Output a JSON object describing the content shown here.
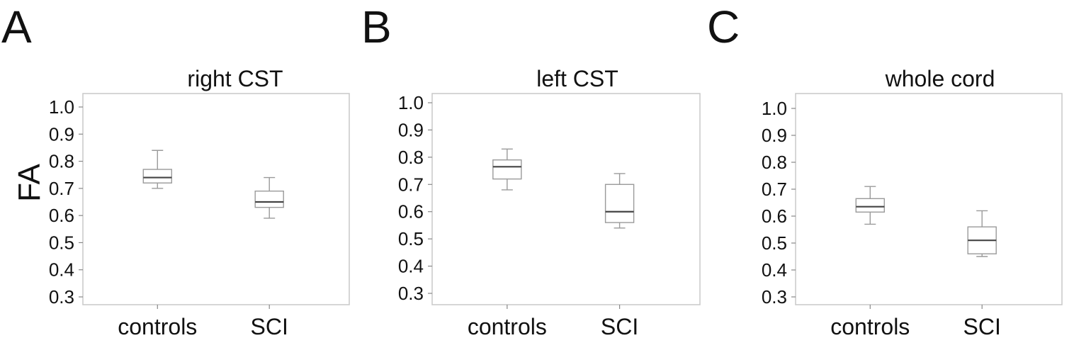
{
  "ylabel": "FA",
  "chart_data": [
    {
      "type": "box",
      "panel": "A",
      "title": "right CST",
      "categories": [
        "controls",
        "SCI"
      ],
      "ylim": [
        0.27,
        1.03
      ],
      "yticks": [
        "1.0",
        "0.9",
        "0.8",
        "0.7",
        "0.6",
        "0.5",
        "0.4",
        "0.3"
      ],
      "ytick_values": [
        1.0,
        0.9,
        0.8,
        0.7,
        0.6,
        0.5,
        0.4,
        0.3
      ],
      "boxes": [
        {
          "min": 0.7,
          "q1": 0.72,
          "median": 0.74,
          "q3": 0.77,
          "max": 0.84
        },
        {
          "min": 0.59,
          "q1": 0.63,
          "median": 0.65,
          "q3": 0.69,
          "max": 0.74
        }
      ]
    },
    {
      "type": "box",
      "panel": "B",
      "title": "left CST",
      "categories": [
        "controls",
        "SCI"
      ],
      "ylim": [
        0.27,
        1.03
      ],
      "yticks": [
        "1.0",
        "0.9",
        "0.8",
        "0.7",
        "0.6",
        "0.5",
        "0.4",
        "0.3"
      ],
      "ytick_values": [
        1.0,
        0.9,
        0.8,
        0.7,
        0.6,
        0.5,
        0.4,
        0.3
      ],
      "boxes": [
        {
          "min": 0.68,
          "q1": 0.72,
          "median": 0.765,
          "q3": 0.79,
          "max": 0.83
        },
        {
          "min": 0.54,
          "q1": 0.56,
          "median": 0.6,
          "q3": 0.7,
          "max": 0.74
        }
      ]
    },
    {
      "type": "box",
      "panel": "C",
      "title": "whole cord",
      "categories": [
        "controls",
        "SCI"
      ],
      "ylim": [
        0.27,
        1.03
      ],
      "yticks": [
        "1.0",
        "0.9",
        "0.8",
        "0.7",
        "0.6",
        "0.5",
        "0.4",
        "0.3"
      ],
      "ytick_values": [
        1.0,
        0.9,
        0.8,
        0.7,
        0.6,
        0.5,
        0.4,
        0.3
      ],
      "boxes": [
        {
          "min": 0.57,
          "q1": 0.615,
          "median": 0.635,
          "q3": 0.665,
          "max": 0.71
        },
        {
          "min": 0.45,
          "q1": 0.46,
          "median": 0.51,
          "q3": 0.56,
          "max": 0.62
        }
      ]
    }
  ]
}
